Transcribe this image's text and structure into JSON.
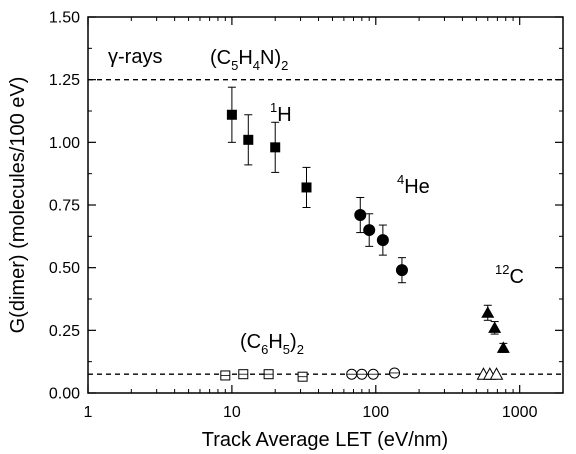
{
  "chart_data": {
    "type": "scatter",
    "title": "",
    "xlabel": "Track Average LET (eV/nm)",
    "ylabel": "G(dimer) (molecules/100 eV)",
    "x_scale": "log",
    "xlim": [
      1,
      2000
    ],
    "ylim": [
      0.0,
      1.5
    ],
    "x_ticks": [
      1,
      10,
      100,
      1000
    ],
    "x_tick_labels": [
      "1",
      "10",
      "100",
      "1000"
    ],
    "y_ticks": [
      0.0,
      0.25,
      0.5,
      0.75,
      1.0,
      1.25,
      1.5
    ],
    "y_tick_labels": [
      "0.00",
      "0.25",
      "0.50",
      "0.75",
      "1.00",
      "1.25",
      "1.50"
    ],
    "grid": false,
    "reference_lines": [
      {
        "y": 1.25,
        "style": "dashed"
      },
      {
        "y": 0.075,
        "style": "dashed"
      }
    ],
    "series": [
      {
        "marker": "filled-square",
        "points": [
          {
            "x": 10,
            "y": 1.11,
            "err": 0.11
          },
          {
            "x": 13,
            "y": 1.01,
            "err": 0.1
          },
          {
            "x": 20,
            "y": 0.98,
            "err": 0.1
          },
          {
            "x": 33,
            "y": 0.82,
            "err": 0.08
          }
        ]
      },
      {
        "marker": "filled-circle",
        "points": [
          {
            "x": 78,
            "y": 0.71,
            "err": 0.07
          },
          {
            "x": 90,
            "y": 0.65,
            "err": 0.065
          },
          {
            "x": 112,
            "y": 0.61,
            "err": 0.06
          },
          {
            "x": 152,
            "y": 0.49,
            "err": 0.05
          }
        ]
      },
      {
        "marker": "filled-triangle",
        "points": [
          {
            "x": 600,
            "y": 0.32,
            "err": 0.03
          },
          {
            "x": 670,
            "y": 0.26,
            "err": 0.025
          },
          {
            "x": 770,
            "y": 0.18,
            "err": 0.018
          }
        ]
      },
      {
        "marker": "open-square",
        "points": [
          {
            "x": 9,
            "y": 0.07
          },
          {
            "x": 12,
            "y": 0.075
          },
          {
            "x": 18,
            "y": 0.075
          },
          {
            "x": 31,
            "y": 0.065
          }
        ]
      },
      {
        "marker": "open-circle",
        "points": [
          {
            "x": 68,
            "y": 0.075
          },
          {
            "x": 80,
            "y": 0.075
          },
          {
            "x": 96,
            "y": 0.075
          },
          {
            "x": 135,
            "y": 0.08
          }
        ]
      },
      {
        "marker": "open-triangle",
        "points": [
          {
            "x": 560,
            "y": 0.075
          },
          {
            "x": 620,
            "y": 0.075
          },
          {
            "x": 690,
            "y": 0.075
          }
        ]
      }
    ],
    "annotations": {
      "gamma": "γ-rays",
      "bipyridine": {
        "open": "(C",
        "s1": "5",
        "h": "H",
        "s2": "4",
        "n": "N)",
        "s3": "2"
      },
      "proton": {
        "sup": "1",
        "base": "H"
      },
      "helium": {
        "sup": "4",
        "base": "He"
      },
      "carbon": {
        "sup": "12",
        "base": "C"
      },
      "biphenyl": {
        "open": "(C",
        "s1": "6",
        "h": "H",
        "s2": "5",
        "close": ")",
        "s3": "2"
      }
    }
  }
}
